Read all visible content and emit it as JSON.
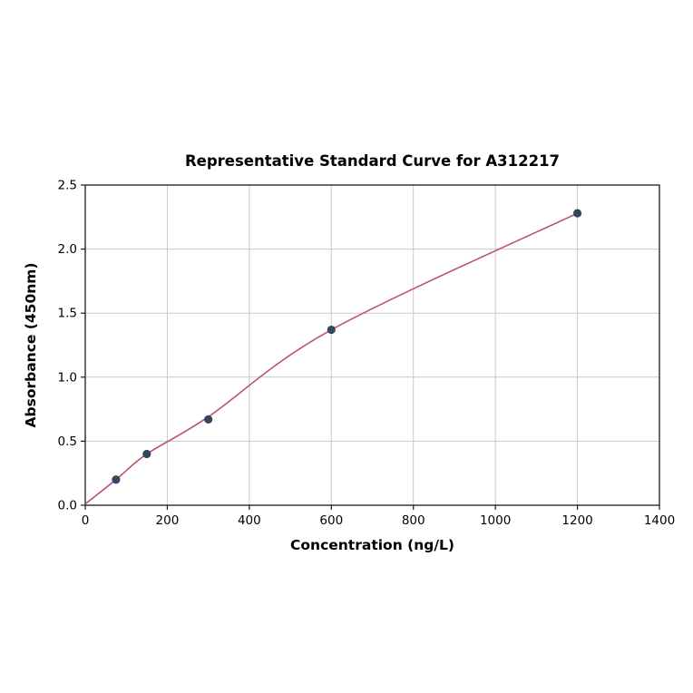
{
  "chart": {
    "title": "Representative Standard Curve for A312217",
    "xlabel": "Concentration (ng/L)",
    "ylabel": "Absorbance (450nm)"
  },
  "chart_data": {
    "type": "scatter",
    "title": "Representative Standard Curve for A312217",
    "xlabel": "Concentration (ng/L)",
    "ylabel": "Absorbance (450nm)",
    "x": [
      75,
      150,
      300,
      600,
      1200
    ],
    "y": [
      0.2,
      0.4,
      0.67,
      1.37,
      2.28
    ],
    "curve": [
      [
        0,
        0.01
      ],
      [
        75,
        0.2
      ],
      [
        150,
        0.4
      ],
      [
        300,
        0.69
      ],
      [
        600,
        1.37
      ],
      [
        1200,
        2.28
      ]
    ],
    "xlim": [
      0,
      1400
    ],
    "ylim": [
      0,
      2.5
    ],
    "xticks": [
      0,
      200,
      400,
      600,
      800,
      1000,
      1200,
      1400
    ],
    "xtick_labels": [
      "0",
      "200",
      "400",
      "600",
      "800",
      "1000",
      "1200",
      "1400"
    ],
    "yticks": [
      0.0,
      0.5,
      1.0,
      1.5,
      2.0,
      2.5
    ],
    "ytick_labels": [
      "0.0",
      "0.5",
      "1.0",
      "1.5",
      "2.0",
      "2.5"
    ],
    "grid": true,
    "legend": "none",
    "point_color": "#31485e",
    "line_color": "#bc5077",
    "grid_color": "#c9c9c9",
    "border_color": "#1a1a1a"
  }
}
